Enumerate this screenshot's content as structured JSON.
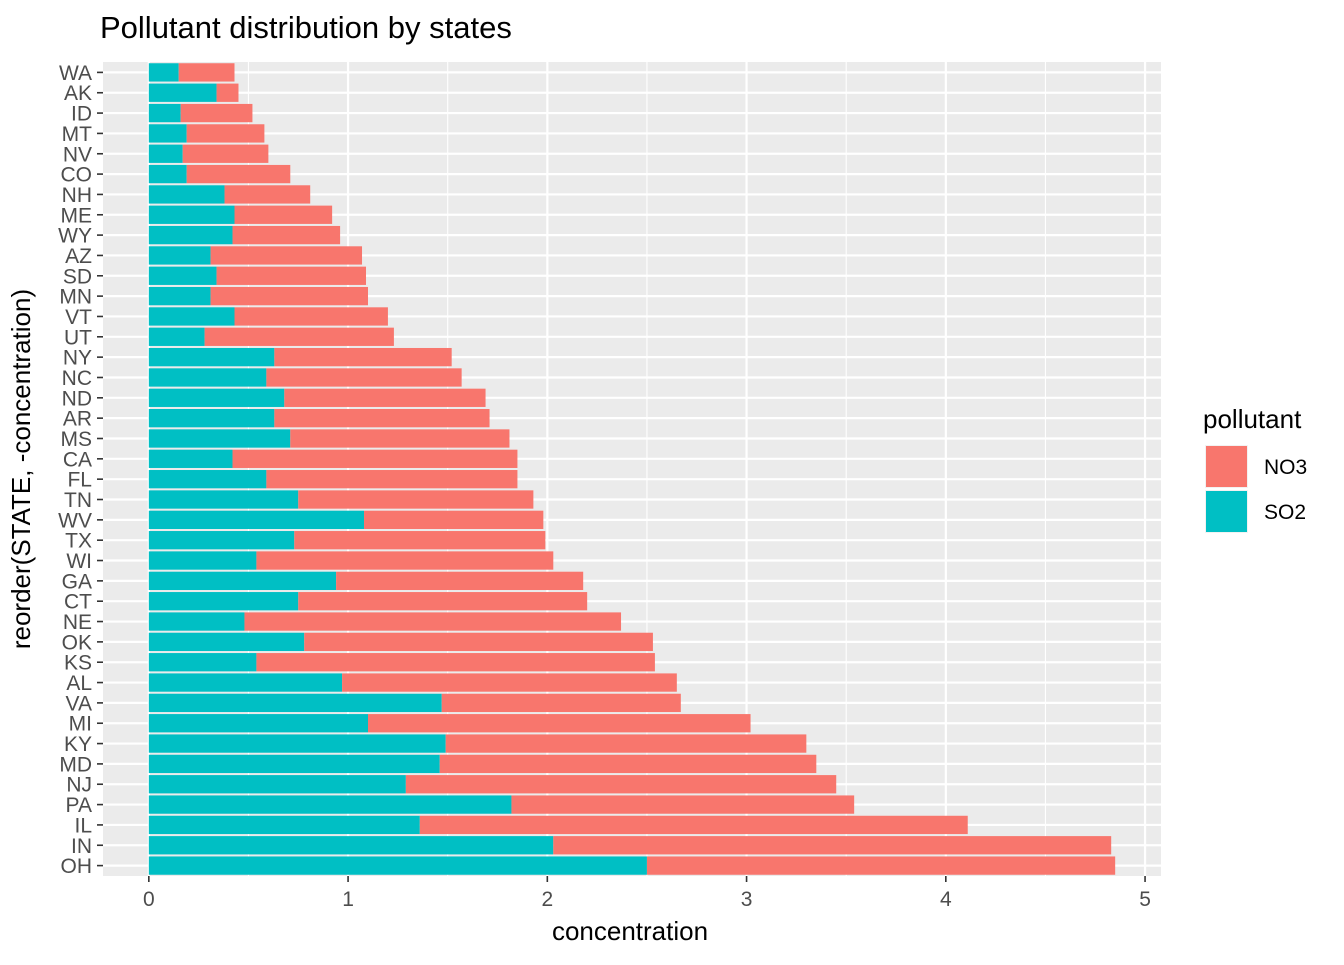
{
  "chart_data": {
    "type": "bar",
    "orientation": "horizontal",
    "stacked": true,
    "title": "Pollutant distribution by states",
    "xlabel": "concentration",
    "ylabel": "reorder(STATE, -concentration)",
    "xlim": [
      -0.23,
      5.08
    ],
    "xticks": [
      0,
      1,
      2,
      3,
      4,
      5
    ],
    "grid": true,
    "legend": {
      "title": "pollutant",
      "position": "right"
    },
    "categories": [
      "WA",
      "AK",
      "ID",
      "MT",
      "NV",
      "CO",
      "NH",
      "ME",
      "WY",
      "AZ",
      "SD",
      "MN",
      "VT",
      "UT",
      "NY",
      "NC",
      "ND",
      "AR",
      "MS",
      "CA",
      "FL",
      "TN",
      "WV",
      "TX",
      "WI",
      "GA",
      "CT",
      "NE",
      "OK",
      "KS",
      "AL",
      "VA",
      "MI",
      "KY",
      "MD",
      "NJ",
      "PA",
      "IL",
      "IN",
      "OH"
    ],
    "series": [
      {
        "name": "SO2",
        "color": "#00BFC4",
        "values": [
          0.15,
          0.34,
          0.16,
          0.19,
          0.17,
          0.19,
          0.38,
          0.43,
          0.42,
          0.31,
          0.34,
          0.31,
          0.43,
          0.28,
          0.63,
          0.59,
          0.68,
          0.63,
          0.71,
          0.42,
          0.59,
          0.75,
          1.08,
          0.73,
          0.54,
          0.94,
          0.75,
          0.48,
          0.78,
          0.54,
          0.97,
          1.47,
          1.1,
          1.49,
          1.46,
          1.29,
          1.82,
          1.36,
          2.03,
          2.5
        ]
      },
      {
        "name": "NO3",
        "color": "#F8766D",
        "values": [
          0.28,
          0.11,
          0.36,
          0.39,
          0.43,
          0.52,
          0.43,
          0.49,
          0.54,
          0.76,
          0.75,
          0.79,
          0.77,
          0.95,
          0.89,
          0.98,
          1.01,
          1.08,
          1.1,
          1.43,
          1.26,
          1.18,
          0.9,
          1.26,
          1.49,
          1.24,
          1.45,
          1.89,
          1.75,
          2.0,
          1.68,
          1.2,
          1.92,
          1.81,
          1.89,
          2.16,
          1.72,
          2.75,
          2.8,
          2.35
        ]
      }
    ]
  }
}
